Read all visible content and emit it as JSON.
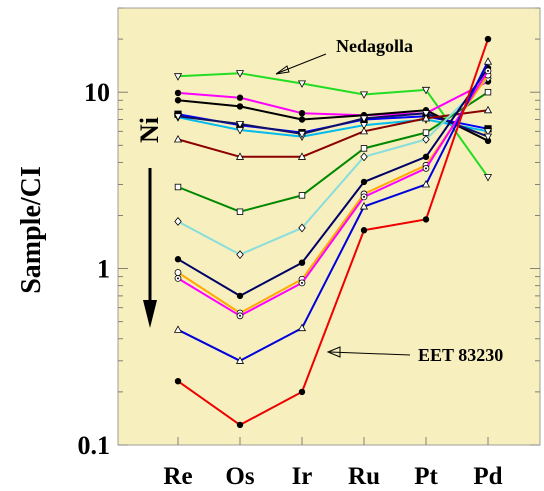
{
  "chart_data": {
    "type": "line",
    "title": "",
    "ylabel": "Sample/CI",
    "xlabel": "",
    "yscale": "log",
    "ylim": [
      0.1,
      30
    ],
    "yticks": [
      {
        "value": 0.1,
        "label": "0.1"
      },
      {
        "value": 1,
        "label": "1"
      },
      {
        "value": 10,
        "label": "10"
      }
    ],
    "categories": [
      "Re",
      "Os",
      "Ir",
      "Ru",
      "Pt",
      "Pd"
    ],
    "background": "#f7efbd",
    "grid": false,
    "trend_label": "Ni",
    "annotations": [
      {
        "text": "Nedagolla",
        "points_to_series": 0,
        "points_to_category": 1
      },
      {
        "text": "EET 83230",
        "points_to_series": 16,
        "points_to_category": 3
      }
    ],
    "series": [
      {
        "color": "#22dd22",
        "marker": "triangle-down",
        "values": [
          12.3,
          12.8,
          11.2,
          9.7,
          10.3,
          3.3
        ]
      },
      {
        "color": "#ff00ff",
        "marker": "circle-filled",
        "values": [
          9.9,
          9.3,
          7.6,
          7.4,
          7.6,
          11.5
        ]
      },
      {
        "color": "#000000",
        "marker": "circle-filled",
        "values": [
          9.0,
          8.3,
          7.0,
          7.4,
          7.9,
          5.3
        ]
      },
      {
        "color": "#0000ff",
        "marker": "square-filled",
        "values": [
          7.5,
          6.5,
          5.9,
          7.0,
          7.3,
          6.2
        ]
      },
      {
        "color": "#00bbee",
        "marker": "triangle-down",
        "values": [
          7.2,
          6.1,
          5.6,
          6.5,
          7.0,
          6.0
        ]
      },
      {
        "color": "#111166",
        "marker": "triangle-down",
        "values": [
          7.3,
          6.6,
          5.8,
          7.1,
          7.6,
          5.6
        ]
      },
      {
        "color": "#8b0000",
        "marker": "triangle-up",
        "values": [
          5.4,
          4.3,
          4.3,
          6.0,
          7.1,
          7.9
        ]
      },
      {
        "color": "#008800",
        "marker": "square-open",
        "values": [
          2.9,
          2.1,
          2.6,
          4.8,
          5.9,
          10.0
        ]
      },
      {
        "color": "#88dddd",
        "marker": "diamond-open",
        "values": [
          1.85,
          1.2,
          1.7,
          4.3,
          5.4,
          12.0
        ]
      },
      {
        "color": "#000066",
        "marker": "circle-filled",
        "values": [
          1.13,
          0.7,
          1.08,
          3.1,
          4.3,
          13.7
        ]
      },
      {
        "color": "#ffaa00",
        "marker": "circle-open",
        "values": [
          0.95,
          0.56,
          0.87,
          2.65,
          3.85,
          12.5
        ]
      },
      {
        "color": "#ff00ff",
        "marker": "circle-dot",
        "values": [
          0.88,
          0.54,
          0.83,
          2.55,
          3.7,
          13.2
        ]
      },
      {
        "color": "#0000dd",
        "marker": "triangle-up",
        "values": [
          0.45,
          0.3,
          0.46,
          2.25,
          3.0,
          14.9
        ]
      },
      {
        "color": "#ee0000",
        "marker": "circle-filled",
        "values": [
          0.23,
          0.13,
          0.2,
          1.65,
          1.9,
          20.0
        ]
      }
    ]
  }
}
